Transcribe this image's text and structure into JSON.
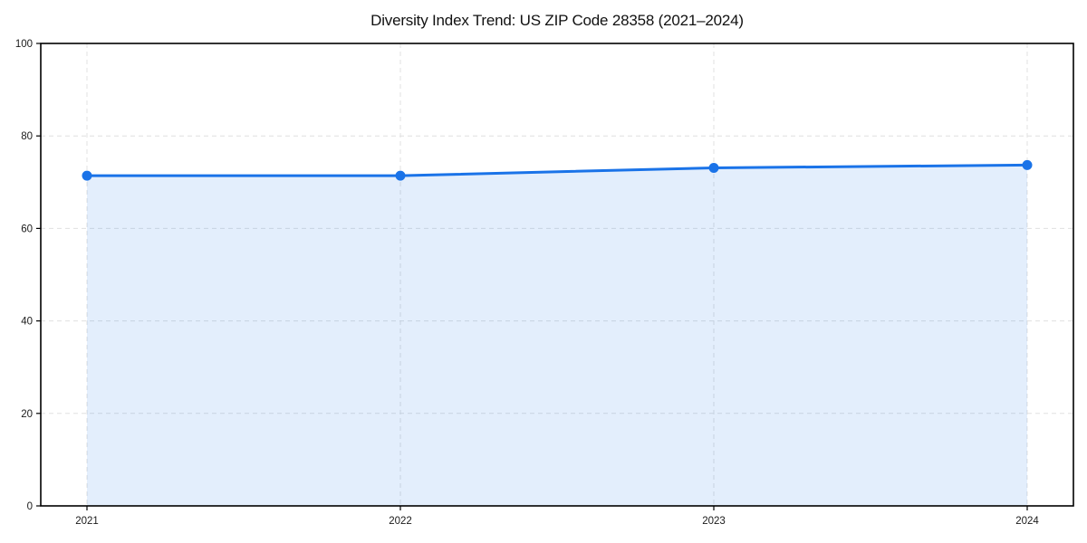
{
  "figure": {
    "background": "#ffffff"
  },
  "chart_data": {
    "type": "area",
    "title": "Diversity Index Trend: US ZIP Code 28358 (2021–2024)",
    "x": [
      "2021",
      "2022",
      "2023",
      "2024"
    ],
    "values": [
      71.4,
      71.4,
      73.1,
      73.7
    ],
    "xlabel": "",
    "ylabel": "",
    "ylim": [
      0,
      100
    ],
    "yticks": [
      0,
      20,
      40,
      60,
      80,
      100
    ],
    "grid": "dashed-both-axes",
    "legend": "none",
    "marker": "circle",
    "line_color": "#1a73e8",
    "fill_color": "rgba(26,115,232,0.12)",
    "grid_color": "#e0e0e0",
    "axis_color": "#000000",
    "tick_label_color": "#1a1a1a",
    "title_color": "#111111"
  }
}
